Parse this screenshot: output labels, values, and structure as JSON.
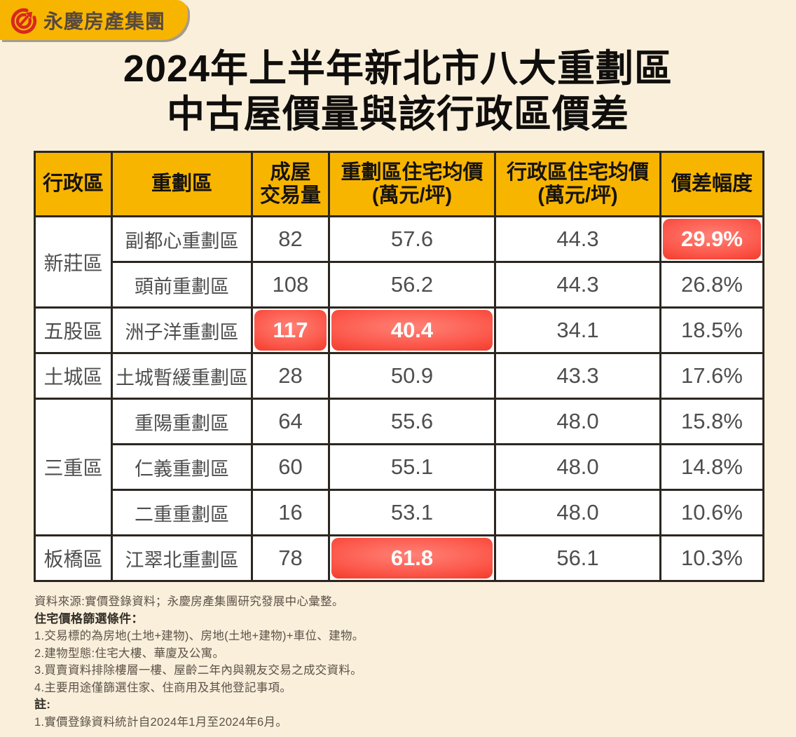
{
  "page": {
    "background": "#f9efdb",
    "accent_yellow": "#f8b500",
    "highlight_red": "#f23a2b",
    "border_color": "#2b2620"
  },
  "logo": {
    "company": "永慶房產集團",
    "icon": "yungching-ring-arrow-icon"
  },
  "title": {
    "line1": "2024年上半年新北市八大重劃區",
    "line2": "中古屋價量與該行政區價差"
  },
  "chart_data": {
    "type": "table",
    "title": "2024年上半年新北市八大重劃區中古屋價量與該行政區價差",
    "columns": [
      {
        "line1": "行政區",
        "line2": ""
      },
      {
        "line1": "重劃區",
        "line2": ""
      },
      {
        "line1": "成屋",
        "line2": "交易量"
      },
      {
        "line1": "重劃區住宅均價",
        "line2": "(萬元/坪)"
      },
      {
        "line1": "行政區住宅均價",
        "line2": "(萬元/坪)"
      },
      {
        "line1": "價差幅度",
        "line2": ""
      }
    ],
    "groups": [
      {
        "district": "新莊區",
        "rows": [
          {
            "zone": "副都心重劃區",
            "volume": "82",
            "zone_price": "57.6",
            "district_price": "44.3",
            "gap": "29.9%",
            "highlight": [
              "gap"
            ]
          },
          {
            "zone": "頭前重劃區",
            "volume": "108",
            "zone_price": "56.2",
            "district_price": "44.3",
            "gap": "26.8%",
            "highlight": []
          }
        ]
      },
      {
        "district": "五股區",
        "rows": [
          {
            "zone": "洲子洋重劃區",
            "volume": "117",
            "zone_price": "40.4",
            "district_price": "34.1",
            "gap": "18.5%",
            "highlight": [
              "volume",
              "zone_price"
            ]
          }
        ]
      },
      {
        "district": "土城區",
        "rows": [
          {
            "zone": "土城暫緩重劃區",
            "volume": "28",
            "zone_price": "50.9",
            "district_price": "43.3",
            "gap": "17.6%",
            "highlight": []
          }
        ]
      },
      {
        "district": "三重區",
        "rows": [
          {
            "zone": "重陽重劃區",
            "volume": "64",
            "zone_price": "55.6",
            "district_price": "48.0",
            "gap": "15.8%",
            "highlight": []
          },
          {
            "zone": "仁義重劃區",
            "volume": "60",
            "zone_price": "55.1",
            "district_price": "48.0",
            "gap": "14.8%",
            "highlight": []
          },
          {
            "zone": "二重重劃區",
            "volume": "16",
            "zone_price": "53.1",
            "district_price": "48.0",
            "gap": "10.6%",
            "highlight": []
          }
        ]
      },
      {
        "district": "板橋區",
        "rows": [
          {
            "zone": "江翠北重劃區",
            "volume": "78",
            "zone_price": "61.8",
            "district_price": "56.1",
            "gap": "10.3%",
            "highlight": [
              "zone_price"
            ]
          }
        ]
      }
    ]
  },
  "footnotes": {
    "source": "資料來源:實價登錄資料；永慶房產集團研究發展中心彙整。",
    "filter_title": "住宅價格篩選條件：",
    "filters": [
      "1.交易標的為房地(土地+建物)、房地(土地+建物)+車位、建物。",
      "2.建物型態:住宅大樓、華廈及公寓。",
      "3.買賣資料排除樓層一樓、屋齡二年內與親友交易之成交資料。",
      "4.主要用途僅篩選住家、住商用及其他登記事項。"
    ],
    "note_title": "註:",
    "notes": [
      "1.實價登錄資料統計自2024年1月至2024年6月。"
    ]
  }
}
